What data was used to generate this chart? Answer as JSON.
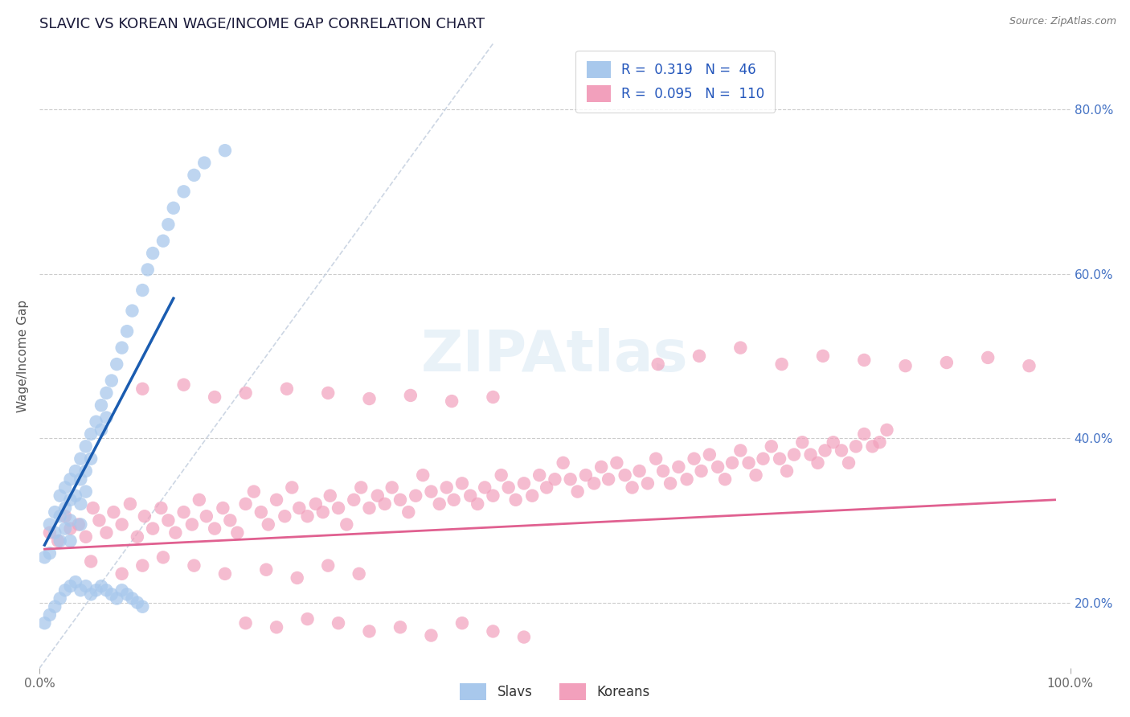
{
  "title": "SLAVIC VS KOREAN WAGE/INCOME GAP CORRELATION CHART",
  "source": "Source: ZipAtlas.com",
  "ylabel": "Wage/Income Gap",
  "right_yticklabels": [
    "20.0%",
    "40.0%",
    "60.0%",
    "80.0%"
  ],
  "right_ytick_vals": [
    0.2,
    0.4,
    0.6,
    0.8
  ],
  "x_left_label": "0.0%",
  "x_right_label": "100.0%",
  "bottom_legend": [
    "Slavs",
    "Koreans"
  ],
  "legend_line1": "R =  0.319   N =  46",
  "legend_line2": "R =  0.095   N =  110",
  "slavs_color": "#A8C8EC",
  "koreans_color": "#F2A0BC",
  "slavs_line_color": "#1A5CB0",
  "koreans_line_color": "#E06090",
  "ref_line_color": "#C0CCDD",
  "text_blue": "#2255BB",
  "background": "#FFFFFF",
  "slavs_x": [
    0.005,
    0.01,
    0.01,
    0.015,
    0.015,
    0.02,
    0.02,
    0.02,
    0.025,
    0.025,
    0.025,
    0.03,
    0.03,
    0.03,
    0.03,
    0.035,
    0.035,
    0.04,
    0.04,
    0.04,
    0.04,
    0.045,
    0.045,
    0.045,
    0.05,
    0.05,
    0.055,
    0.06,
    0.06,
    0.065,
    0.065,
    0.07,
    0.075,
    0.08,
    0.085,
    0.09,
    0.1,
    0.105,
    0.11,
    0.12,
    0.125,
    0.13,
    0.14,
    0.15,
    0.16,
    0.18
  ],
  "slavs_y": [
    0.255,
    0.295,
    0.26,
    0.31,
    0.285,
    0.33,
    0.305,
    0.275,
    0.34,
    0.315,
    0.29,
    0.35,
    0.325,
    0.3,
    0.275,
    0.36,
    0.33,
    0.375,
    0.35,
    0.32,
    0.295,
    0.39,
    0.36,
    0.335,
    0.405,
    0.375,
    0.42,
    0.44,
    0.41,
    0.455,
    0.425,
    0.47,
    0.49,
    0.51,
    0.53,
    0.555,
    0.58,
    0.605,
    0.625,
    0.64,
    0.66,
    0.68,
    0.7,
    0.72,
    0.735,
    0.75
  ],
  "slavs_extra_x": [
    0.005,
    0.01,
    0.015,
    0.02,
    0.025,
    0.03,
    0.035,
    0.04,
    0.045,
    0.05,
    0.055,
    0.06,
    0.065,
    0.07,
    0.075,
    0.08,
    0.085,
    0.09,
    0.095,
    0.1
  ],
  "slavs_extra_y": [
    0.175,
    0.185,
    0.195,
    0.205,
    0.215,
    0.22,
    0.225,
    0.215,
    0.22,
    0.21,
    0.215,
    0.22,
    0.215,
    0.21,
    0.205,
    0.215,
    0.21,
    0.205,
    0.2,
    0.195
  ],
  "koreans_x": [
    0.01,
    0.018,
    0.025,
    0.03,
    0.038,
    0.045,
    0.052,
    0.058,
    0.065,
    0.072,
    0.08,
    0.088,
    0.095,
    0.102,
    0.11,
    0.118,
    0.125,
    0.132,
    0.14,
    0.148,
    0.155,
    0.162,
    0.17,
    0.178,
    0.185,
    0.192,
    0.2,
    0.208,
    0.215,
    0.222,
    0.23,
    0.238,
    0.245,
    0.252,
    0.26,
    0.268,
    0.275,
    0.282,
    0.29,
    0.298,
    0.305,
    0.312,
    0.32,
    0.328,
    0.335,
    0.342,
    0.35,
    0.358,
    0.365,
    0.372,
    0.38,
    0.388,
    0.395,
    0.402,
    0.41,
    0.418,
    0.425,
    0.432,
    0.44,
    0.448,
    0.455,
    0.462,
    0.47,
    0.478,
    0.485,
    0.492,
    0.5,
    0.508,
    0.515,
    0.522,
    0.53,
    0.538,
    0.545,
    0.552,
    0.56,
    0.568,
    0.575,
    0.582,
    0.59,
    0.598,
    0.605,
    0.612,
    0.62,
    0.628,
    0.635,
    0.642,
    0.65,
    0.658,
    0.665,
    0.672,
    0.68,
    0.688,
    0.695,
    0.702,
    0.71,
    0.718,
    0.725,
    0.732,
    0.74,
    0.748,
    0.755,
    0.762,
    0.77,
    0.778,
    0.785,
    0.792,
    0.8,
    0.808,
    0.815,
    0.822
  ],
  "koreans_y": [
    0.285,
    0.275,
    0.305,
    0.29,
    0.295,
    0.28,
    0.315,
    0.3,
    0.285,
    0.31,
    0.295,
    0.32,
    0.28,
    0.305,
    0.29,
    0.315,
    0.3,
    0.285,
    0.31,
    0.295,
    0.325,
    0.305,
    0.29,
    0.315,
    0.3,
    0.285,
    0.32,
    0.335,
    0.31,
    0.295,
    0.325,
    0.305,
    0.34,
    0.315,
    0.305,
    0.32,
    0.31,
    0.33,
    0.315,
    0.295,
    0.325,
    0.34,
    0.315,
    0.33,
    0.32,
    0.34,
    0.325,
    0.31,
    0.33,
    0.355,
    0.335,
    0.32,
    0.34,
    0.325,
    0.345,
    0.33,
    0.32,
    0.34,
    0.33,
    0.355,
    0.34,
    0.325,
    0.345,
    0.33,
    0.355,
    0.34,
    0.35,
    0.37,
    0.35,
    0.335,
    0.355,
    0.345,
    0.365,
    0.35,
    0.37,
    0.355,
    0.34,
    0.36,
    0.345,
    0.375,
    0.36,
    0.345,
    0.365,
    0.35,
    0.375,
    0.36,
    0.38,
    0.365,
    0.35,
    0.37,
    0.385,
    0.37,
    0.355,
    0.375,
    0.39,
    0.375,
    0.36,
    0.38,
    0.395,
    0.38,
    0.37,
    0.385,
    0.395,
    0.385,
    0.37,
    0.39,
    0.405,
    0.39,
    0.395,
    0.41
  ],
  "koreans_extra_x": [
    0.05,
    0.08,
    0.1,
    0.12,
    0.15,
    0.18,
    0.22,
    0.25,
    0.28,
    0.31,
    0.2,
    0.23,
    0.26,
    0.29,
    0.32,
    0.35,
    0.38,
    0.41,
    0.44,
    0.47,
    0.6,
    0.64,
    0.68,
    0.72,
    0.76,
    0.8,
    0.84,
    0.88,
    0.92,
    0.96,
    0.1,
    0.14,
    0.17,
    0.2,
    0.24,
    0.28,
    0.32,
    0.36,
    0.4,
    0.44
  ],
  "koreans_extra_y": [
    0.25,
    0.235,
    0.245,
    0.255,
    0.245,
    0.235,
    0.24,
    0.23,
    0.245,
    0.235,
    0.175,
    0.17,
    0.18,
    0.175,
    0.165,
    0.17,
    0.16,
    0.175,
    0.165,
    0.158,
    0.49,
    0.5,
    0.51,
    0.49,
    0.5,
    0.495,
    0.488,
    0.492,
    0.498,
    0.488,
    0.46,
    0.465,
    0.45,
    0.455,
    0.46,
    0.455,
    0.448,
    0.452,
    0.445,
    0.45
  ],
  "xlim": [
    0.0,
    1.0
  ],
  "ylim": [
    0.12,
    0.88
  ]
}
